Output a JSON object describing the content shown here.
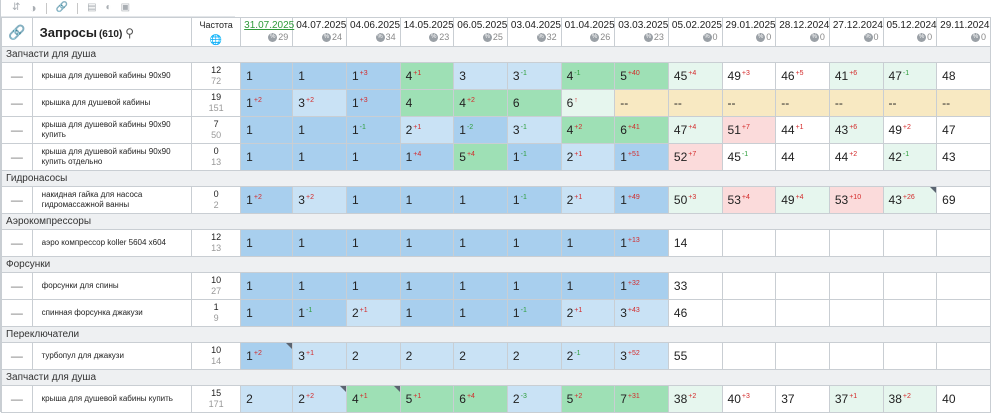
{
  "toolbar": {
    "icons": [
      "sort-icon",
      "toggle-icon",
      "link-icon",
      "table-icon",
      "contrast-icon",
      "text-icon"
    ]
  },
  "header": {
    "link_icon": "🔗",
    "query_label": "Запросы",
    "query_count": "(610)",
    "freq_label": "Частота",
    "freq_icon": "🌐"
  },
  "dates": [
    {
      "date": "31.07.2025",
      "pct": "29"
    },
    {
      "date": "04.07.2025",
      "pct": "24"
    },
    {
      "date": "04.06.2025",
      "pct": "34"
    },
    {
      "date": "14.05.2025",
      "pct": "23"
    },
    {
      "date": "06.05.2025",
      "pct": "25"
    },
    {
      "date": "03.04.2025",
      "pct": "32"
    },
    {
      "date": "01.04.2025",
      "pct": "26"
    },
    {
      "date": "03.03.2025",
      "pct": "23"
    },
    {
      "date": "05.02.2025",
      "pct": "0"
    },
    {
      "date": "29.01.2025",
      "pct": "0"
    },
    {
      "date": "28.12.2024",
      "pct": "0"
    },
    {
      "date": "27.12.2024",
      "pct": "0"
    },
    {
      "date": "05.12.2024",
      "pct": "0"
    },
    {
      "date": "29.11.2024",
      "pct": "0"
    }
  ],
  "groups": [
    {
      "name": "Запчасти для душа",
      "rows": [
        {
          "query": "крыша для душевой кабины 90х90",
          "f1": "12",
          "f2": "72",
          "cells": [
            {
              "v": "1",
              "b": "blue"
            },
            {
              "v": "1",
              "b": "blue"
            },
            {
              "v": "1",
              "d": "+3",
              "b": "blue"
            },
            {
              "v": "4",
              "d": "+1",
              "b": "green"
            },
            {
              "v": "3",
              "b": "lblue"
            },
            {
              "v": "3",
              "d": "-1",
              "b": "lblue"
            },
            {
              "v": "4",
              "d": "-1",
              "b": "green"
            },
            {
              "v": "5",
              "d": "+40",
              "b": "green"
            },
            {
              "v": "45",
              "d": "+4",
              "b": "lgreen"
            },
            {
              "v": "49",
              "d": "+3",
              "b": "white"
            },
            {
              "v": "46",
              "d": "+5",
              "b": "white"
            },
            {
              "v": "41",
              "d": "+6",
              "b": "lgreen"
            },
            {
              "v": "47",
              "d": "-1",
              "b": "lgreen"
            },
            {
              "v": "48",
              "b": "white"
            }
          ]
        },
        {
          "query": "крышка для душевой кабины",
          "f1": "19",
          "f2": "151",
          "cells": [
            {
              "v": "1",
              "d": "+2",
              "b": "blue"
            },
            {
              "v": "3",
              "d": "+2",
              "b": "lblue"
            },
            {
              "v": "1",
              "d": "+3",
              "b": "blue"
            },
            {
              "v": "4",
              "b": "green"
            },
            {
              "v": "4",
              "d": "+2",
              "b": "green"
            },
            {
              "v": "6",
              "b": "green"
            },
            {
              "v": "6",
              "d": "↑",
              "b": "lgreen"
            },
            {
              "v": "--",
              "b": "tan"
            },
            {
              "v": "--",
              "b": "tan"
            },
            {
              "v": "--",
              "b": "tan"
            },
            {
              "v": "--",
              "b": "tan"
            },
            {
              "v": "--",
              "b": "tan"
            },
            {
              "v": "--",
              "b": "tan"
            },
            {
              "v": "--",
              "b": "tan"
            }
          ]
        },
        {
          "query": "крыша для душевой кабины 90х90 купить",
          "f1": "7",
          "f2": "50",
          "cells": [
            {
              "v": "1",
              "b": "blue"
            },
            {
              "v": "1",
              "b": "blue"
            },
            {
              "v": "1",
              "d": "-1",
              "b": "blue"
            },
            {
              "v": "2",
              "d": "+1",
              "b": "lblue"
            },
            {
              "v": "1",
              "d": "-2",
              "b": "blue"
            },
            {
              "v": "3",
              "d": "-1",
              "b": "lblue"
            },
            {
              "v": "4",
              "d": "+2",
              "b": "green"
            },
            {
              "v": "6",
              "d": "+41",
              "b": "green"
            },
            {
              "v": "47",
              "d": "+4",
              "b": "lgreen"
            },
            {
              "v": "51",
              "d": "+7",
              "b": "pink"
            },
            {
              "v": "44",
              "d": "+1",
              "b": "white"
            },
            {
              "v": "43",
              "d": "+6",
              "b": "lgreen"
            },
            {
              "v": "49",
              "d": "+2",
              "b": "white"
            },
            {
              "v": "47",
              "b": "white"
            }
          ]
        },
        {
          "query": "крыша для душевой кабины 90х90 купить отдельно",
          "f1": "0",
          "f2": "13",
          "cells": [
            {
              "v": "1",
              "b": "blue"
            },
            {
              "v": "1",
              "b": "blue"
            },
            {
              "v": "1",
              "b": "blue"
            },
            {
              "v": "1",
              "d": "+4",
              "b": "blue"
            },
            {
              "v": "5",
              "d": "+4",
              "b": "green"
            },
            {
              "v": "1",
              "d": "-1",
              "b": "blue"
            },
            {
              "v": "2",
              "d": "+1",
              "b": "lblue"
            },
            {
              "v": "1",
              "d": "+51",
              "b": "blue"
            },
            {
              "v": "52",
              "d": "+7",
              "b": "pink"
            },
            {
              "v": "45",
              "d": "-1",
              "b": "white"
            },
            {
              "v": "44",
              "b": "white"
            },
            {
              "v": "44",
              "d": "+2",
              "b": "white"
            },
            {
              "v": "42",
              "d": "-1",
              "b": "lgreen"
            },
            {
              "v": "43",
              "b": "white"
            }
          ]
        }
      ]
    },
    {
      "name": "Гидронасосы",
      "rows": [
        {
          "query": "накидная гайка для насоса гидромассажной ванны",
          "f1": "0",
          "f2": "2",
          "cells": [
            {
              "v": "1",
              "d": "+2",
              "b": "blue"
            },
            {
              "v": "3",
              "d": "+2",
              "b": "lblue"
            },
            {
              "v": "1",
              "b": "blue"
            },
            {
              "v": "1",
              "b": "blue"
            },
            {
              "v": "1",
              "b": "blue"
            },
            {
              "v": "1",
              "d": "-1",
              "b": "blue"
            },
            {
              "v": "2",
              "d": "+1",
              "b": "lblue"
            },
            {
              "v": "1",
              "d": "+49",
              "b": "blue"
            },
            {
              "v": "50",
              "d": "+3",
              "b": "lgreen"
            },
            {
              "v": "53",
              "d": "+4",
              "b": "pink"
            },
            {
              "v": "49",
              "d": "+4",
              "b": "lgreen"
            },
            {
              "v": "53",
              "d": "+10",
              "b": "pink"
            },
            {
              "v": "43",
              "d": "+26",
              "b": "lgreen",
              "t": true
            },
            {
              "v": "69",
              "b": "white"
            }
          ]
        }
      ]
    },
    {
      "name": "Аэрокомпрессоры",
      "rows": [
        {
          "query": "аэро компрессор koller 5604 х604",
          "f1": "12",
          "f2": "13",
          "cells": [
            {
              "v": "1",
              "b": "blue"
            },
            {
              "v": "1",
              "b": "blue"
            },
            {
              "v": "1",
              "b": "blue"
            },
            {
              "v": "1",
              "b": "blue"
            },
            {
              "v": "1",
              "b": "blue"
            },
            {
              "v": "1",
              "b": "blue"
            },
            {
              "v": "1",
              "b": "blue"
            },
            {
              "v": "1",
              "d": "+13",
              "b": "blue"
            },
            {
              "v": "14",
              "b": "white"
            },
            {
              "v": "",
              "b": "white"
            },
            {
              "v": "",
              "b": "white"
            },
            {
              "v": "",
              "b": "white"
            },
            {
              "v": "",
              "b": "white"
            },
            {
              "v": "",
              "b": "white"
            }
          ]
        }
      ]
    },
    {
      "name": "Форсунки",
      "rows": [
        {
          "query": "форсунки для спины",
          "f1": "10",
          "f2": "27",
          "cells": [
            {
              "v": "1",
              "b": "blue"
            },
            {
              "v": "1",
              "b": "blue"
            },
            {
              "v": "1",
              "b": "blue"
            },
            {
              "v": "1",
              "b": "blue"
            },
            {
              "v": "1",
              "b": "blue"
            },
            {
              "v": "1",
              "b": "blue"
            },
            {
              "v": "1",
              "b": "blue"
            },
            {
              "v": "1",
              "d": "+32",
              "b": "blue"
            },
            {
              "v": "33",
              "b": "white"
            },
            {
              "v": "",
              "b": "white"
            },
            {
              "v": "",
              "b": "white"
            },
            {
              "v": "",
              "b": "white"
            },
            {
              "v": "",
              "b": "white"
            },
            {
              "v": "",
              "b": "white"
            }
          ]
        },
        {
          "query": "спинная форсунка джакузи",
          "f1": "1",
          "f2": "9",
          "cells": [
            {
              "v": "1",
              "b": "blue"
            },
            {
              "v": "1",
              "d": "-1",
              "b": "blue"
            },
            {
              "v": "2",
              "d": "+1",
              "b": "lblue"
            },
            {
              "v": "1",
              "b": "blue"
            },
            {
              "v": "1",
              "b": "blue"
            },
            {
              "v": "1",
              "d": "-1",
              "b": "blue"
            },
            {
              "v": "2",
              "d": "+1",
              "b": "lblue"
            },
            {
              "v": "3",
              "d": "+43",
              "b": "lblue"
            },
            {
              "v": "46",
              "b": "white"
            },
            {
              "v": "",
              "b": "white"
            },
            {
              "v": "",
              "b": "white"
            },
            {
              "v": "",
              "b": "white"
            },
            {
              "v": "",
              "b": "white"
            },
            {
              "v": "",
              "b": "white"
            }
          ]
        }
      ]
    },
    {
      "name": "Переключатели",
      "rows": [
        {
          "query": "турбопул для джакузи",
          "f1": "10",
          "f2": "14",
          "cells": [
            {
              "v": "1",
              "d": "+2",
              "b": "blue",
              "t": true
            },
            {
              "v": "3",
              "d": "+1",
              "b": "lblue"
            },
            {
              "v": "2",
              "b": "lblue"
            },
            {
              "v": "2",
              "b": "lblue"
            },
            {
              "v": "2",
              "b": "lblue"
            },
            {
              "v": "2",
              "b": "lblue"
            },
            {
              "v": "2",
              "d": "-1",
              "b": "lblue"
            },
            {
              "v": "3",
              "d": "+52",
              "b": "lblue"
            },
            {
              "v": "55",
              "b": "white"
            },
            {
              "v": "",
              "b": "white"
            },
            {
              "v": "",
              "b": "white"
            },
            {
              "v": "",
              "b": "white"
            },
            {
              "v": "",
              "b": "white"
            },
            {
              "v": "",
              "b": "white"
            }
          ]
        }
      ]
    },
    {
      "name": "Запчасти для душа",
      "rows": [
        {
          "query": "крыша для душевой кабины купить",
          "f1": "15",
          "f2": "171",
          "cells": [
            {
              "v": "2",
              "b": "lblue"
            },
            {
              "v": "2",
              "d": "+2",
              "b": "lblue",
              "t": true
            },
            {
              "v": "4",
              "d": "+1",
              "b": "green",
              "t": true
            },
            {
              "v": "5",
              "d": "+1",
              "b": "green"
            },
            {
              "v": "6",
              "d": "+4",
              "b": "green"
            },
            {
              "v": "2",
              "d": "-3",
              "b": "lblue"
            },
            {
              "v": "5",
              "d": "+2",
              "b": "green"
            },
            {
              "v": "7",
              "d": "+31",
              "b": "green"
            },
            {
              "v": "38",
              "d": "+2",
              "b": "lgreen"
            },
            {
              "v": "40",
              "d": "+3",
              "b": "white"
            },
            {
              "v": "37",
              "b": "white"
            },
            {
              "v": "37",
              "d": "+1",
              "b": "lgreen"
            },
            {
              "v": "38",
              "d": "+2",
              "b": "lgreen"
            },
            {
              "v": "40",
              "b": "white"
            }
          ]
        }
      ]
    }
  ]
}
